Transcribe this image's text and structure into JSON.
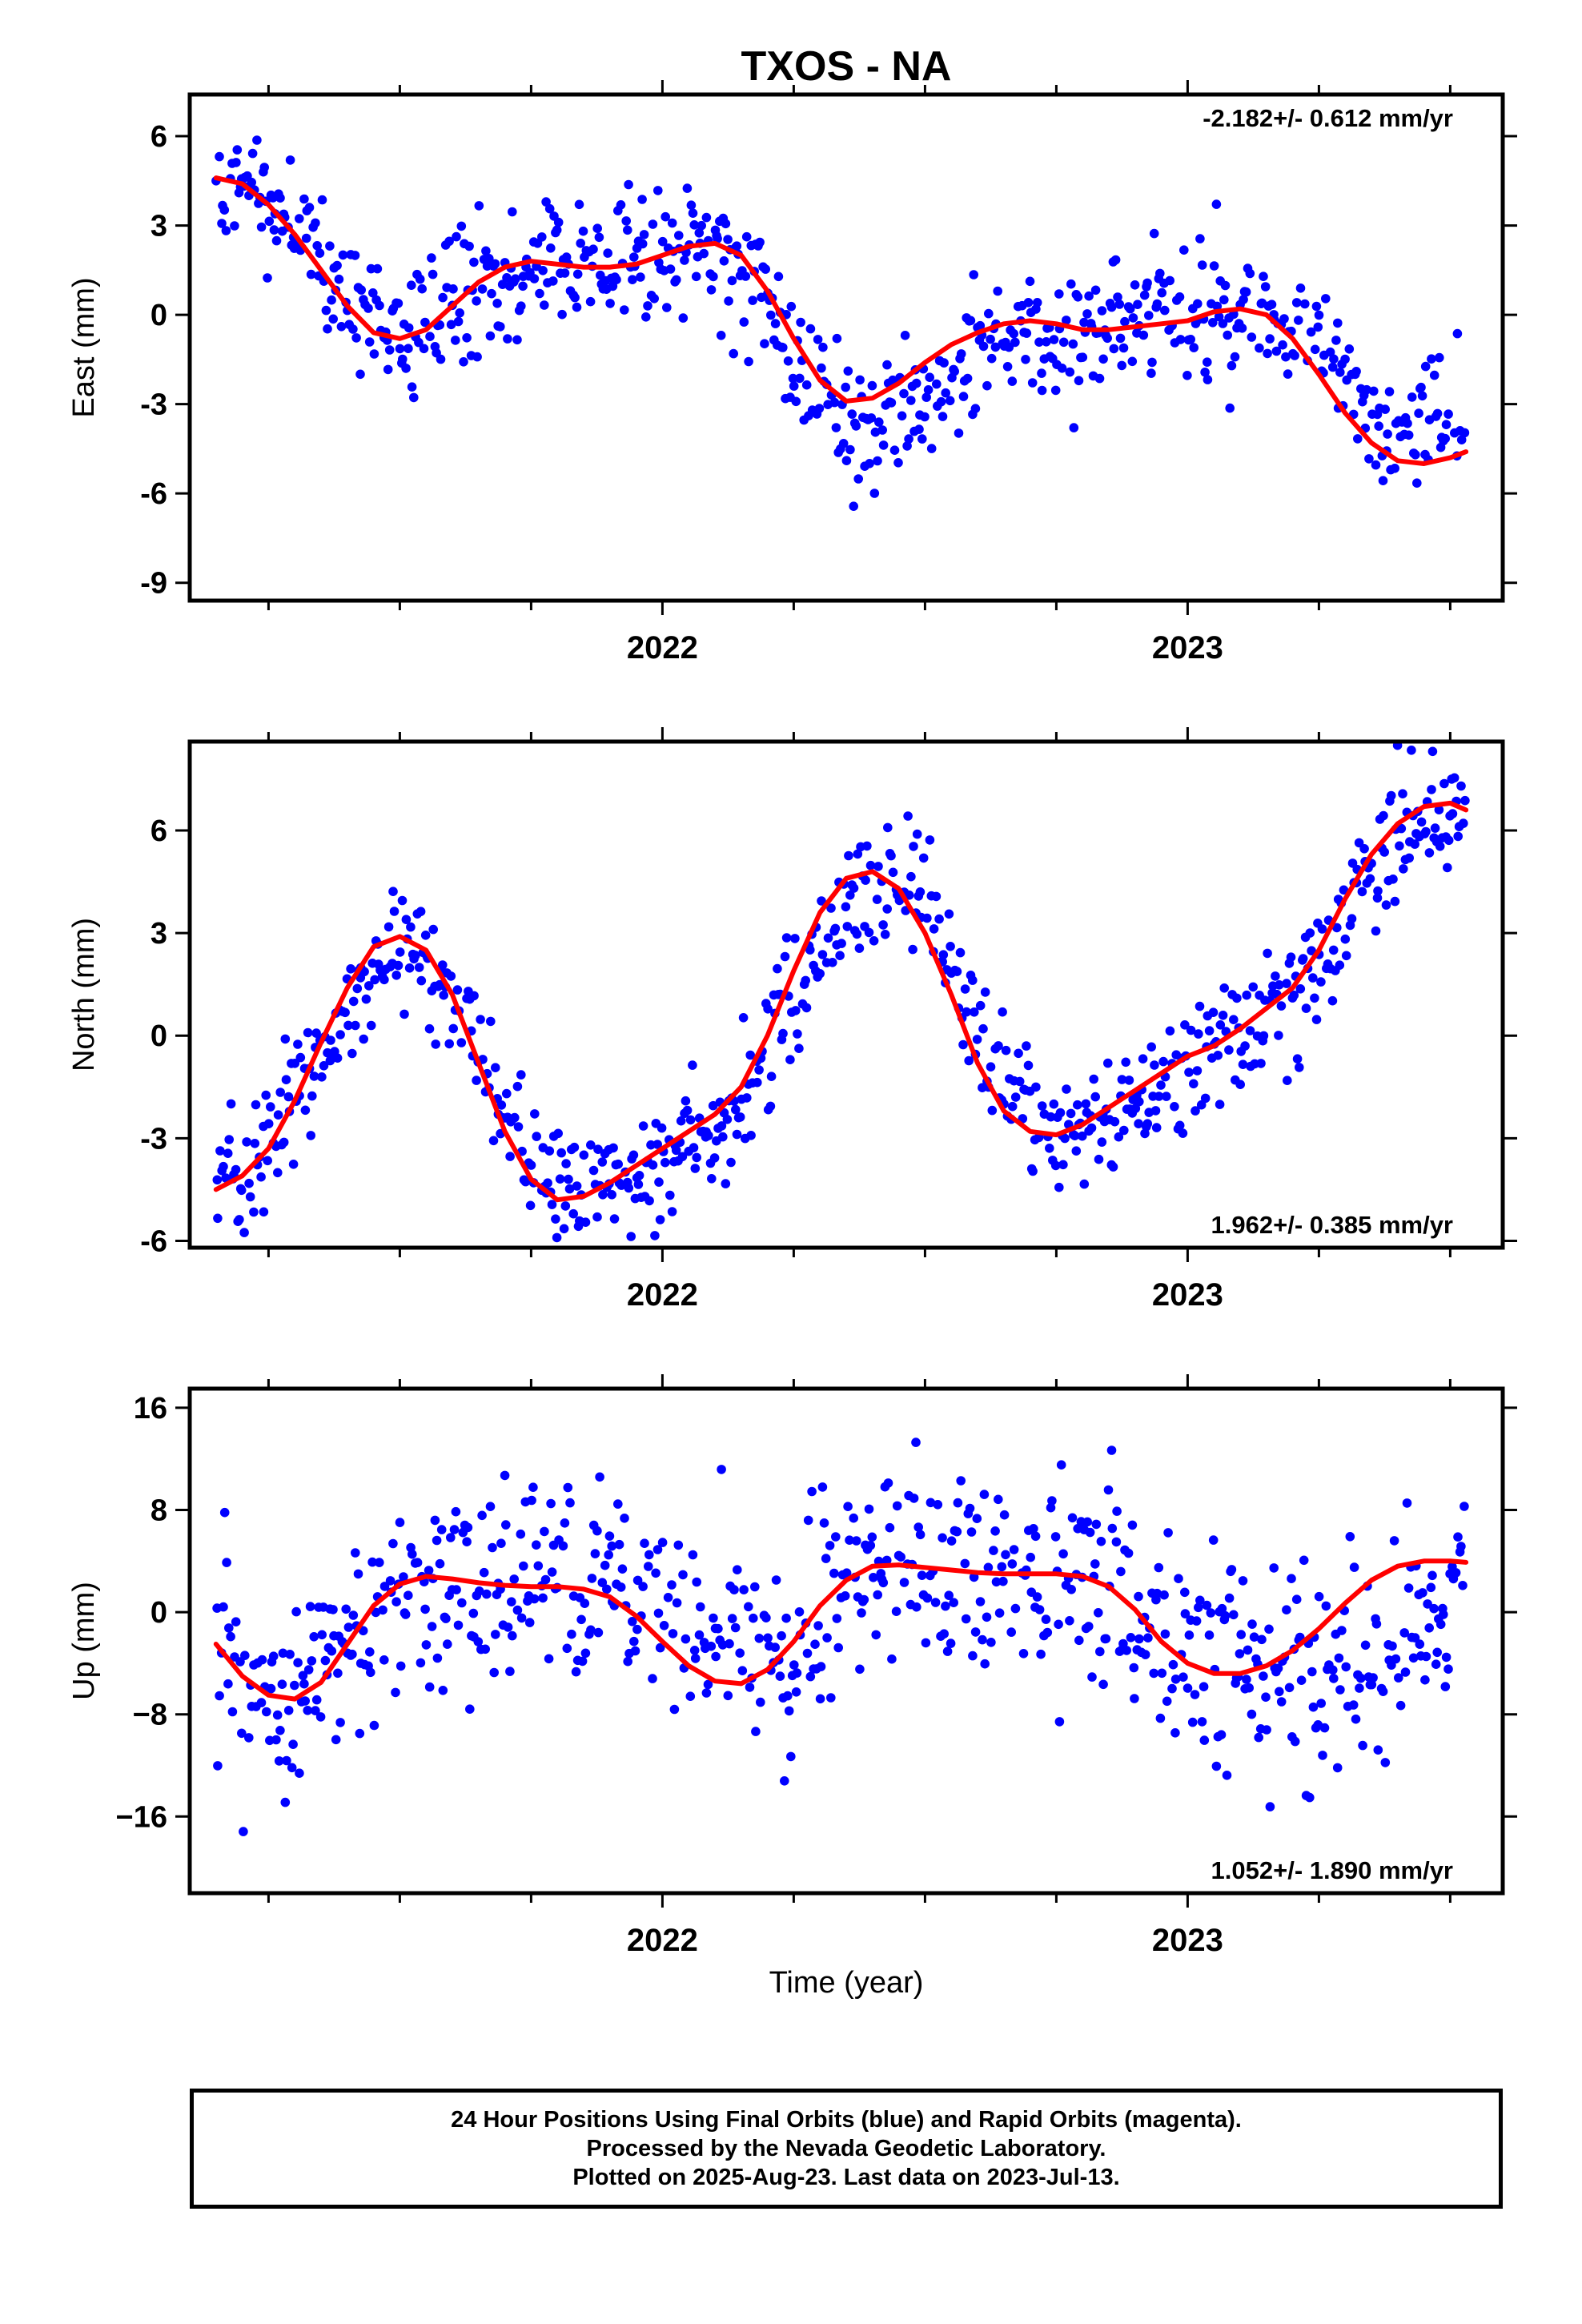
{
  "title": "TXOS - NA",
  "xlabel": "Time (year)",
  "footer": {
    "line1": "24 Hour Positions Using Final Orbits (blue) and Rapid Orbits (magenta).",
    "line2": "Processed by the Nevada Geodetic Laboratory.",
    "line3": "Plotted on 2025-Aug-23. Last data on 2023-Jul-13."
  },
  "colors": {
    "points": "#0000ff",
    "fit": "#ff0000",
    "axes": "#000000"
  },
  "chart_data": [
    {
      "type": "scatter",
      "ylabel": "East (mm)",
      "rate_label": "-2.182+/- 0.612 mm/yr",
      "rate_position": "top-right",
      "xlim": [
        2021.1,
        2023.6
      ],
      "ylim": [
        -9.6,
        7.4
      ],
      "yticks": [
        6,
        3,
        0,
        -3,
        -6,
        -9
      ],
      "ytick_labels": [
        "6",
        "3",
        "0",
        "-3",
        "-6",
        "-9"
      ],
      "xticks": [
        2022,
        2023
      ],
      "xtick_labels": [
        "2022",
        "2023"
      ],
      "series": [
        {
          "name": "",
          "kind": "points",
          "scatter": 1.1,
          "x": [
            2021.15,
            2021.25,
            2021.375,
            2021.5,
            2021.625,
            2021.75,
            2021.875,
            2022.0,
            2022.125,
            2022.25,
            2022.375,
            2022.5,
            2022.625,
            2022.75,
            2022.875,
            2023.0,
            2023.125,
            2023.25,
            2023.375,
            2023.53
          ],
          "y": [
            4.6,
            3.2,
            1.5,
            -0.8,
            0.6,
            1.8,
            1.6,
            2.0,
            2.0,
            -1.5,
            -5.0,
            -4.0,
            -0.8,
            -1.5,
            0.5,
            -0.3,
            0.5,
            0.0,
            -3.5,
            -2.5
          ]
        },
        {
          "name": "",
          "kind": "fit",
          "x": [
            2021.15,
            2021.2,
            2021.25,
            2021.3,
            2021.35,
            2021.4,
            2021.45,
            2021.5,
            2021.55,
            2021.6,
            2021.65,
            2021.7,
            2021.75,
            2021.8,
            2021.85,
            2021.9,
            2021.95,
            2022.0,
            2022.05,
            2022.1,
            2022.15,
            2022.2,
            2022.25,
            2022.3,
            2022.35,
            2022.4,
            2022.45,
            2022.5,
            2022.55,
            2022.6,
            2022.65,
            2022.7,
            2022.75,
            2022.8,
            2022.85,
            2022.9,
            2022.95,
            2023.0,
            2023.05,
            2023.1,
            2023.15,
            2023.2,
            2023.25,
            2023.3,
            2023.35,
            2023.4,
            2023.45,
            2023.5,
            2023.53
          ],
          "y": [
            4.6,
            4.4,
            3.7,
            2.7,
            1.5,
            0.3,
            -0.6,
            -0.8,
            -0.5,
            0.3,
            1.1,
            1.6,
            1.8,
            1.7,
            1.6,
            1.6,
            1.7,
            2.0,
            2.3,
            2.4,
            2.0,
            0.8,
            -0.8,
            -2.2,
            -2.9,
            -2.8,
            -2.3,
            -1.6,
            -1.0,
            -0.6,
            -0.3,
            -0.2,
            -0.3,
            -0.5,
            -0.5,
            -0.4,
            -0.3,
            -0.2,
            0.1,
            0.2,
            0.0,
            -0.8,
            -2.0,
            -3.3,
            -4.3,
            -4.9,
            -5.0,
            -4.8,
            -4.6
          ]
        }
      ]
    },
    {
      "type": "scatter",
      "ylabel": "North (mm)",
      "rate_label": "1.962+/- 0.385 mm/yr",
      "rate_position": "bottom-right",
      "xlim": [
        2021.1,
        2023.6
      ],
      "ylim": [
        -6.2,
        8.6
      ],
      "yticks": [
        6,
        3,
        0,
        -3,
        -6
      ],
      "ytick_labels": [
        "6",
        "3",
        "0",
        "-3",
        "-6"
      ],
      "xticks": [
        2022,
        2023
      ],
      "xtick_labels": [
        "2022",
        "2023"
      ],
      "series": [
        {
          "name": "",
          "kind": "points",
          "scatter": 0.9,
          "x": [
            2021.15,
            2021.25,
            2021.375,
            2021.5,
            2021.625,
            2021.75,
            2021.875,
            2022.0,
            2022.125,
            2022.25,
            2022.375,
            2022.5,
            2022.625,
            2022.75,
            2022.875,
            2023.0,
            2023.125,
            2023.25,
            2023.375,
            2023.53
          ],
          "y": [
            -4.5,
            -3.5,
            0.0,
            2.8,
            1.0,
            -3.6,
            -4.5,
            -4.2,
            -2.8,
            0.5,
            4.0,
            4.8,
            0.0,
            -2.5,
            -2.8,
            -1.5,
            0.5,
            1.5,
            5.0,
            6.5
          ]
        },
        {
          "name": "",
          "kind": "fit",
          "x": [
            2021.15,
            2021.2,
            2021.25,
            2021.3,
            2021.35,
            2021.4,
            2021.45,
            2021.5,
            2021.55,
            2021.6,
            2021.65,
            2021.7,
            2021.75,
            2021.8,
            2021.85,
            2021.9,
            2021.95,
            2022.0,
            2022.05,
            2022.1,
            2022.15,
            2022.2,
            2022.25,
            2022.3,
            2022.35,
            2022.4,
            2022.45,
            2022.5,
            2022.55,
            2022.6,
            2022.65,
            2022.7,
            2022.75,
            2022.8,
            2022.85,
            2022.9,
            2022.95,
            2023.0,
            2023.05,
            2023.1,
            2023.15,
            2023.2,
            2023.25,
            2023.3,
            2023.35,
            2023.4,
            2023.45,
            2023.5,
            2023.53
          ],
          "y": [
            -4.5,
            -4.1,
            -3.3,
            -1.9,
            -0.2,
            1.4,
            2.6,
            2.9,
            2.5,
            1.2,
            -0.8,
            -2.8,
            -4.2,
            -4.8,
            -4.7,
            -4.3,
            -3.8,
            -3.3,
            -2.8,
            -2.3,
            -1.5,
            0.0,
            1.9,
            3.6,
            4.6,
            4.8,
            4.3,
            3.0,
            1.2,
            -0.8,
            -2.2,
            -2.8,
            -2.9,
            -2.6,
            -2.1,
            -1.6,
            -1.1,
            -0.6,
            -0.3,
            0.2,
            0.8,
            1.4,
            2.5,
            4.0,
            5.3,
            6.2,
            6.7,
            6.8,
            6.6
          ]
        }
      ]
    },
    {
      "type": "scatter",
      "ylabel": "Up (mm)",
      "rate_label": "1.052+/- 1.890 mm/yr",
      "rate_position": "bottom-right",
      "xlim": [
        2021.1,
        2023.6
      ],
      "ylim": [
        -22,
        17.5
      ],
      "yticks": [
        16,
        8,
        0,
        -8,
        -16
      ],
      "ytick_labels": [
        "16",
        "8",
        "0",
        "−8",
        "−16"
      ],
      "xticks": [
        2022,
        2023
      ],
      "xtick_labels": [
        "2022",
        "2023"
      ],
      "series": [
        {
          "name": "",
          "kind": "points",
          "scatter": 4.0,
          "x": [
            2021.15,
            2021.25,
            2021.375,
            2021.5,
            2021.625,
            2021.75,
            2021.875,
            2022.0,
            2022.125,
            2022.25,
            2022.375,
            2022.5,
            2022.625,
            2022.75,
            2022.875,
            2023.0,
            2023.125,
            2023.25,
            2023.375,
            2023.53
          ],
          "y": [
            -4.0,
            -6.0,
            -4.0,
            0.0,
            3.0,
            2.0,
            2.0,
            2.0,
            -1.0,
            -5.0,
            2.0,
            4.0,
            4.0,
            3.0,
            2.0,
            0.0,
            -6.0,
            -8.0,
            -6.0,
            -1.0
          ]
        },
        {
          "name": "",
          "kind": "fit",
          "x": [
            2021.15,
            2021.2,
            2021.25,
            2021.3,
            2021.35,
            2021.4,
            2021.45,
            2021.5,
            2021.55,
            2021.6,
            2021.65,
            2021.7,
            2021.75,
            2021.8,
            2021.85,
            2021.9,
            2021.95,
            2022.0,
            2022.05,
            2022.1,
            2022.15,
            2022.2,
            2022.25,
            2022.3,
            2022.35,
            2022.4,
            2022.45,
            2022.5,
            2022.55,
            2022.6,
            2022.65,
            2022.7,
            2022.75,
            2022.8,
            2022.85,
            2022.9,
            2022.95,
            2023.0,
            2023.05,
            2023.1,
            2023.15,
            2023.2,
            2023.25,
            2023.3,
            2023.35,
            2023.4,
            2023.45,
            2023.5,
            2023.53
          ],
          "y": [
            -2.5,
            -5.0,
            -6.5,
            -6.8,
            -5.5,
            -2.5,
            0.5,
            2.2,
            2.8,
            2.6,
            2.3,
            2.1,
            2.0,
            2.0,
            1.8,
            1.2,
            -0.3,
            -2.3,
            -4.2,
            -5.4,
            -5.6,
            -4.5,
            -2.3,
            0.5,
            2.5,
            3.6,
            3.7,
            3.5,
            3.3,
            3.1,
            3.0,
            3.0,
            3.0,
            2.8,
            2.0,
            0.2,
            -2.3,
            -4.0,
            -4.8,
            -4.8,
            -4.2,
            -3.0,
            -1.3,
            0.7,
            2.5,
            3.6,
            4.0,
            4.0,
            3.9
          ]
        }
      ]
    }
  ]
}
